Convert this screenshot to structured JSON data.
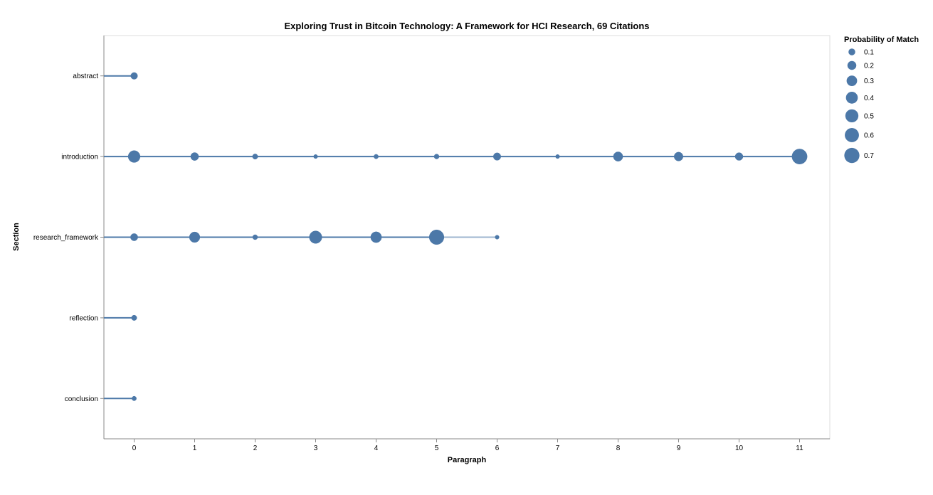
{
  "chart_data": {
    "type": "scatter",
    "title": "Exploring Trust in Bitcoin Technology: A Framework for HCI Research, 69 Citations",
    "xlabel": "Paragraph",
    "ylabel": "Section",
    "x_ticks": [
      0,
      1,
      2,
      3,
      4,
      5,
      6,
      7,
      8,
      9,
      10,
      11
    ],
    "xlim": [
      -0.5,
      11.5
    ],
    "categories": [
      "abstract",
      "introduction",
      "research_framework",
      "reflection",
      "conclusion"
    ],
    "grid": false,
    "legend": {
      "title": "Probability of Match",
      "placement": "top-right",
      "values": [
        0.1,
        0.2,
        0.3,
        0.4,
        0.5,
        0.6,
        0.7
      ]
    },
    "color": "#4c78a8",
    "series": [
      {
        "section": "abstract",
        "points": [
          {
            "x": 0,
            "p": 0.1
          }
        ]
      },
      {
        "section": "introduction",
        "points": [
          {
            "x": 0,
            "p": 0.4
          },
          {
            "x": 1,
            "p": 0.15
          },
          {
            "x": 2,
            "p": 0.05
          },
          {
            "x": 3,
            "p": 0.02
          },
          {
            "x": 4,
            "p": 0.03
          },
          {
            "x": 5,
            "p": 0.04
          },
          {
            "x": 6,
            "p": 0.13
          },
          {
            "x": 7,
            "p": 0.02
          },
          {
            "x": 8,
            "p": 0.23
          },
          {
            "x": 9,
            "p": 0.2
          },
          {
            "x": 10,
            "p": 0.14
          },
          {
            "x": 11,
            "p": 0.7
          }
        ]
      },
      {
        "section": "research_framework",
        "points": [
          {
            "x": 0,
            "p": 0.12
          },
          {
            "x": 1,
            "p": 0.3
          },
          {
            "x": 2,
            "p": 0.04
          },
          {
            "x": 3,
            "p": 0.45
          },
          {
            "x": 4,
            "p": 0.33
          },
          {
            "x": 5,
            "p": 0.65
          },
          {
            "x": 6,
            "p": 0.02
          }
        ]
      },
      {
        "section": "reflection",
        "points": [
          {
            "x": 0,
            "p": 0.05
          }
        ]
      },
      {
        "section": "conclusion",
        "points": [
          {
            "x": 0,
            "p": 0.03
          }
        ]
      }
    ]
  }
}
